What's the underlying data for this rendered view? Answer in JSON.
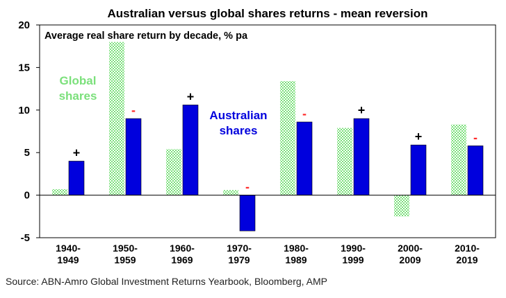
{
  "title": "Australian versus global shares returns - mean reversion",
  "source": "Source: ABN-Amro Global Investment Returns Yearbook, Bloomberg, AMP",
  "chart_data": {
    "type": "bar",
    "subtitle": "Average real share return by decade,  % pa",
    "categories": [
      [
        "1940-",
        "1949"
      ],
      [
        "1950-",
        "1959"
      ],
      [
        "1960-",
        "1969"
      ],
      [
        "1970-",
        "1979"
      ],
      [
        "1980-",
        "1989"
      ],
      [
        "1990-",
        "1999"
      ],
      [
        "2000-",
        "2009"
      ],
      [
        "2010-",
        "2019"
      ]
    ],
    "series": [
      {
        "name": "Global shares",
        "label_lines": [
          "Global",
          "shares"
        ],
        "color": "#7be07b",
        "pattern": "checkered",
        "values": [
          0.7,
          18.0,
          5.4,
          0.6,
          13.4,
          7.9,
          -2.5,
          8.3
        ]
      },
      {
        "name": "Australian shares",
        "label_lines": [
          "Australian",
          "shares"
        ],
        "color": "#0000dd",
        "values": [
          4.0,
          9.0,
          10.6,
          -4.2,
          8.6,
          9.0,
          5.9,
          5.8
        ]
      }
    ],
    "annotations": [
      "+",
      "-",
      "+",
      "-",
      "-",
      "+",
      "+",
      "-"
    ],
    "annotation_colors": {
      "+": "#000000",
      "-": "#ff2a2a"
    },
    "yticks": [
      -5,
      0,
      5,
      10,
      15,
      20
    ],
    "ylim": [
      -5,
      20
    ],
    "grid": false
  }
}
